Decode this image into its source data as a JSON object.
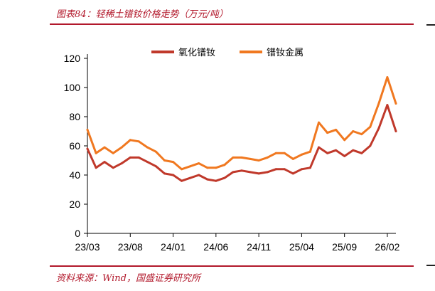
{
  "header": {
    "title": "图表84：轻稀土镨钕价格走势（万元/吨）"
  },
  "footer": {
    "source": "资料来源：Wind，国盛证券研究所"
  },
  "chart_data": {
    "type": "line",
    "title": "图表84：轻稀土镨钕价格走势（万元/吨）",
    "xlabel": "",
    "ylabel": "",
    "ylim": [
      0,
      120
    ],
    "yticks": [
      0,
      20,
      40,
      60,
      80,
      100,
      120
    ],
    "xlim": [
      "2023-03",
      "2026-03"
    ],
    "xticks": [
      "23/03",
      "23/08",
      "24/01",
      "24/06",
      "24/11",
      "25/04",
      "25/09",
      "26/02"
    ],
    "grid": false,
    "legend_position": "top",
    "x": [
      "2023-03",
      "2023-04",
      "2023-05",
      "2023-06",
      "2023-07",
      "2023-08",
      "2023-09",
      "2023-10",
      "2023-11",
      "2023-12",
      "2024-01",
      "2024-02",
      "2024-03",
      "2024-04",
      "2024-05",
      "2024-06",
      "2024-07",
      "2024-08",
      "2024-09",
      "2024-10",
      "2024-11",
      "2024-12",
      "2025-01",
      "2025-02",
      "2025-03",
      "2025-04",
      "2025-05",
      "2025-06",
      "2025-07",
      "2025-08",
      "2025-09",
      "2025-10",
      "2025-11",
      "2025-12",
      "2026-01",
      "2026-02",
      "2026-03"
    ],
    "series": [
      {
        "name": "氧化镨钕",
        "color": "#c0392b",
        "values": [
          58,
          45,
          49,
          45,
          48,
          52,
          52,
          49,
          46,
          41,
          40,
          36,
          38,
          40,
          37,
          36,
          38,
          42,
          43,
          42,
          41,
          42,
          44,
          44,
          41,
          44,
          45,
          59,
          55,
          57,
          53,
          57,
          55,
          60,
          72,
          88,
          70
        ]
      },
      {
        "name": "镨钕金属",
        "color": "#f07820",
        "values": [
          71,
          55,
          59,
          55,
          59,
          64,
          63,
          59,
          56,
          50,
          49,
          44,
          46,
          48,
          45,
          45,
          47,
          52,
          52,
          51,
          50,
          52,
          55,
          55,
          51,
          54,
          56,
          76,
          69,
          71,
          64,
          70,
          68,
          73,
          89,
          107,
          89
        ]
      }
    ]
  }
}
